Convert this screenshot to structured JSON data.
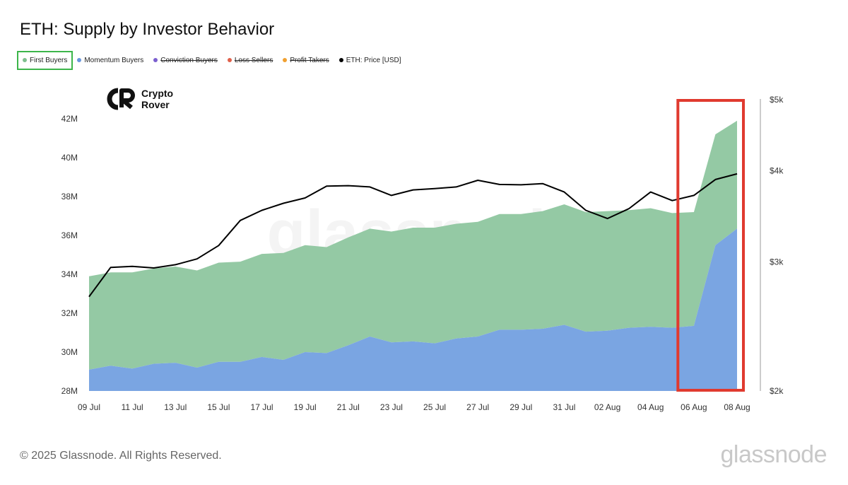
{
  "title": "ETH: Supply by Investor Behavior",
  "legend": [
    {
      "label": "First Buyers",
      "color": "#7fbf8e",
      "active": true
    },
    {
      "label": "Momentum Buyers",
      "color": "#6a97dc",
      "active": true
    },
    {
      "label": "Conviction Buyers",
      "color": "#7b5fcf",
      "active": false
    },
    {
      "label": "Loss Sellers",
      "color": "#e0604a",
      "active": false
    },
    {
      "label": "Profit Takers",
      "color": "#f0a030",
      "active": false
    },
    {
      "label": "ETH: Price [USD]",
      "color": "#000000",
      "active": true
    }
  ],
  "brand": {
    "line1": "Crypto",
    "line2": "Rover"
  },
  "watermark": "glassnode",
  "footer": {
    "copyright": "© 2025 Glassnode. All Rights Reserved.",
    "logo": "glassnode"
  },
  "colors": {
    "first_fill": "#94c9a4",
    "momentum_fill": "#7aa5e2",
    "price_line": "#000000",
    "highlight": "#e03a2f"
  },
  "chart_data": {
    "type": "area",
    "x_tick_labels": [
      "09 Jul",
      "11 Jul",
      "13 Jul",
      "15 Jul",
      "17 Jul",
      "19 Jul",
      "21 Jul",
      "23 Jul",
      "25 Jul",
      "27 Jul",
      "29 Jul",
      "31 Jul",
      "02 Aug",
      "04 Aug",
      "06 Aug",
      "08 Aug"
    ],
    "x": [
      "09 Jul",
      "10 Jul",
      "11 Jul",
      "12 Jul",
      "13 Jul",
      "14 Jul",
      "15 Jul",
      "16 Jul",
      "17 Jul",
      "18 Jul",
      "19 Jul",
      "20 Jul",
      "21 Jul",
      "22 Jul",
      "23 Jul",
      "24 Jul",
      "25 Jul",
      "26 Jul",
      "27 Jul",
      "28 Jul",
      "29 Jul",
      "30 Jul",
      "31 Jul",
      "01 Aug",
      "02 Aug",
      "03 Aug",
      "04 Aug",
      "05 Aug",
      "06 Aug",
      "07 Aug",
      "08 Aug"
    ],
    "series": [
      {
        "name": "Momentum Buyers",
        "axis": "left",
        "stacked": true,
        "values": [
          29.1,
          29.3,
          29.15,
          29.4,
          29.45,
          29.2,
          29.5,
          29.5,
          29.75,
          29.6,
          30.0,
          29.95,
          30.35,
          30.8,
          30.5,
          30.55,
          30.45,
          30.7,
          30.8,
          31.15,
          31.15,
          31.2,
          31.4,
          31.05,
          31.1,
          31.25,
          31.3,
          31.25,
          31.35,
          35.5,
          36.35
        ]
      },
      {
        "name": "First Buyers",
        "axis": "left",
        "stacked": true,
        "top_values": [
          33.9,
          34.1,
          34.1,
          34.3,
          34.4,
          34.2,
          34.6,
          34.65,
          35.05,
          35.1,
          35.5,
          35.4,
          35.9,
          36.35,
          36.2,
          36.4,
          36.4,
          36.6,
          36.7,
          37.1,
          37.1,
          37.25,
          37.6,
          37.2,
          37.25,
          37.3,
          37.4,
          37.15,
          37.2,
          41.2,
          41.9
        ]
      },
      {
        "name": "ETH: Price [USD]",
        "axis": "right",
        "type": "line",
        "values": [
          2690,
          2950,
          2960,
          2945,
          2975,
          3030,
          3160,
          3420,
          3530,
          3610,
          3670,
          3810,
          3815,
          3800,
          3700,
          3765,
          3780,
          3800,
          3880,
          3830,
          3825,
          3840,
          3740,
          3530,
          3440,
          3550,
          3740,
          3640,
          3700,
          3890,
          3960
        ]
      }
    ],
    "y_left": {
      "ticks": [
        "28M",
        "30M",
        "32M",
        "34M",
        "36M",
        "38M",
        "40M",
        "42M"
      ],
      "range": [
        28,
        42
      ]
    },
    "y_right": {
      "ticks": [
        "$2k",
        "$3k",
        "$4k",
        "$5k"
      ],
      "scale": "log",
      "range": [
        2000,
        5000
      ]
    },
    "highlight_range": [
      "05 Aug",
      "08 Aug"
    ]
  }
}
